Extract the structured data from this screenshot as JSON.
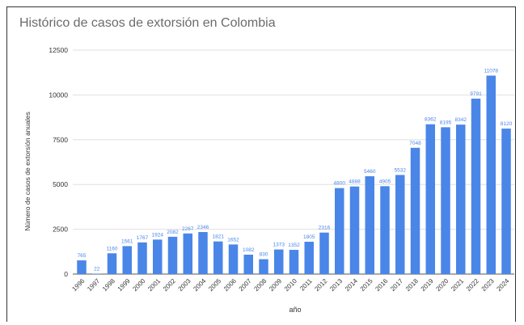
{
  "chart_data": {
    "type": "bar",
    "title": "Histórico de casos de extorsión en Colombia",
    "xlabel": "año",
    "ylabel": "Número de casos de extorsión anuales",
    "ylim": [
      0,
      12500
    ],
    "yticks": [
      0,
      2500,
      5000,
      7500,
      10000,
      12500
    ],
    "ytick_labels": [
      "0",
      "2500",
      "5000",
      "7500",
      "10000",
      "12500"
    ],
    "grid": true,
    "legend": "none",
    "bar_color": "#4a86e8",
    "label_color": "#4a86e8",
    "categories": [
      "1996",
      "1997",
      "1998",
      "1999",
      "2000",
      "2001",
      "2002",
      "2003",
      "2004",
      "2005",
      "2006",
      "2007",
      "2008",
      "2009",
      "2010",
      "2011",
      "2012",
      "2013",
      "2014",
      "2015",
      "2016",
      "2017",
      "2018",
      "2019",
      "2020",
      "2021",
      "2022",
      "2023",
      "2024"
    ],
    "values": [
      765,
      22,
      1160,
      1561,
      1767,
      1924,
      2082,
      2267,
      2346,
      1821,
      1652,
      1082,
      830,
      1373,
      1352,
      1805,
      2316,
      4800,
      4888,
      5460,
      4905,
      5532,
      7048,
      8362,
      8195,
      8342,
      9791,
      11078,
      8120
    ],
    "labels": [
      "765",
      "22",
      "1160",
      "1561",
      "1767",
      "1924",
      "2082",
      "2267",
      "2346",
      "1821",
      "1652",
      "1082",
      "830",
      "1373",
      "1352",
      "1805",
      "2316",
      "4800",
      "4888",
      "5460",
      "4905",
      "5532",
      "7048",
      "8362",
      "8195",
      "8342",
      "9791",
      "11078",
      "8120"
    ]
  }
}
